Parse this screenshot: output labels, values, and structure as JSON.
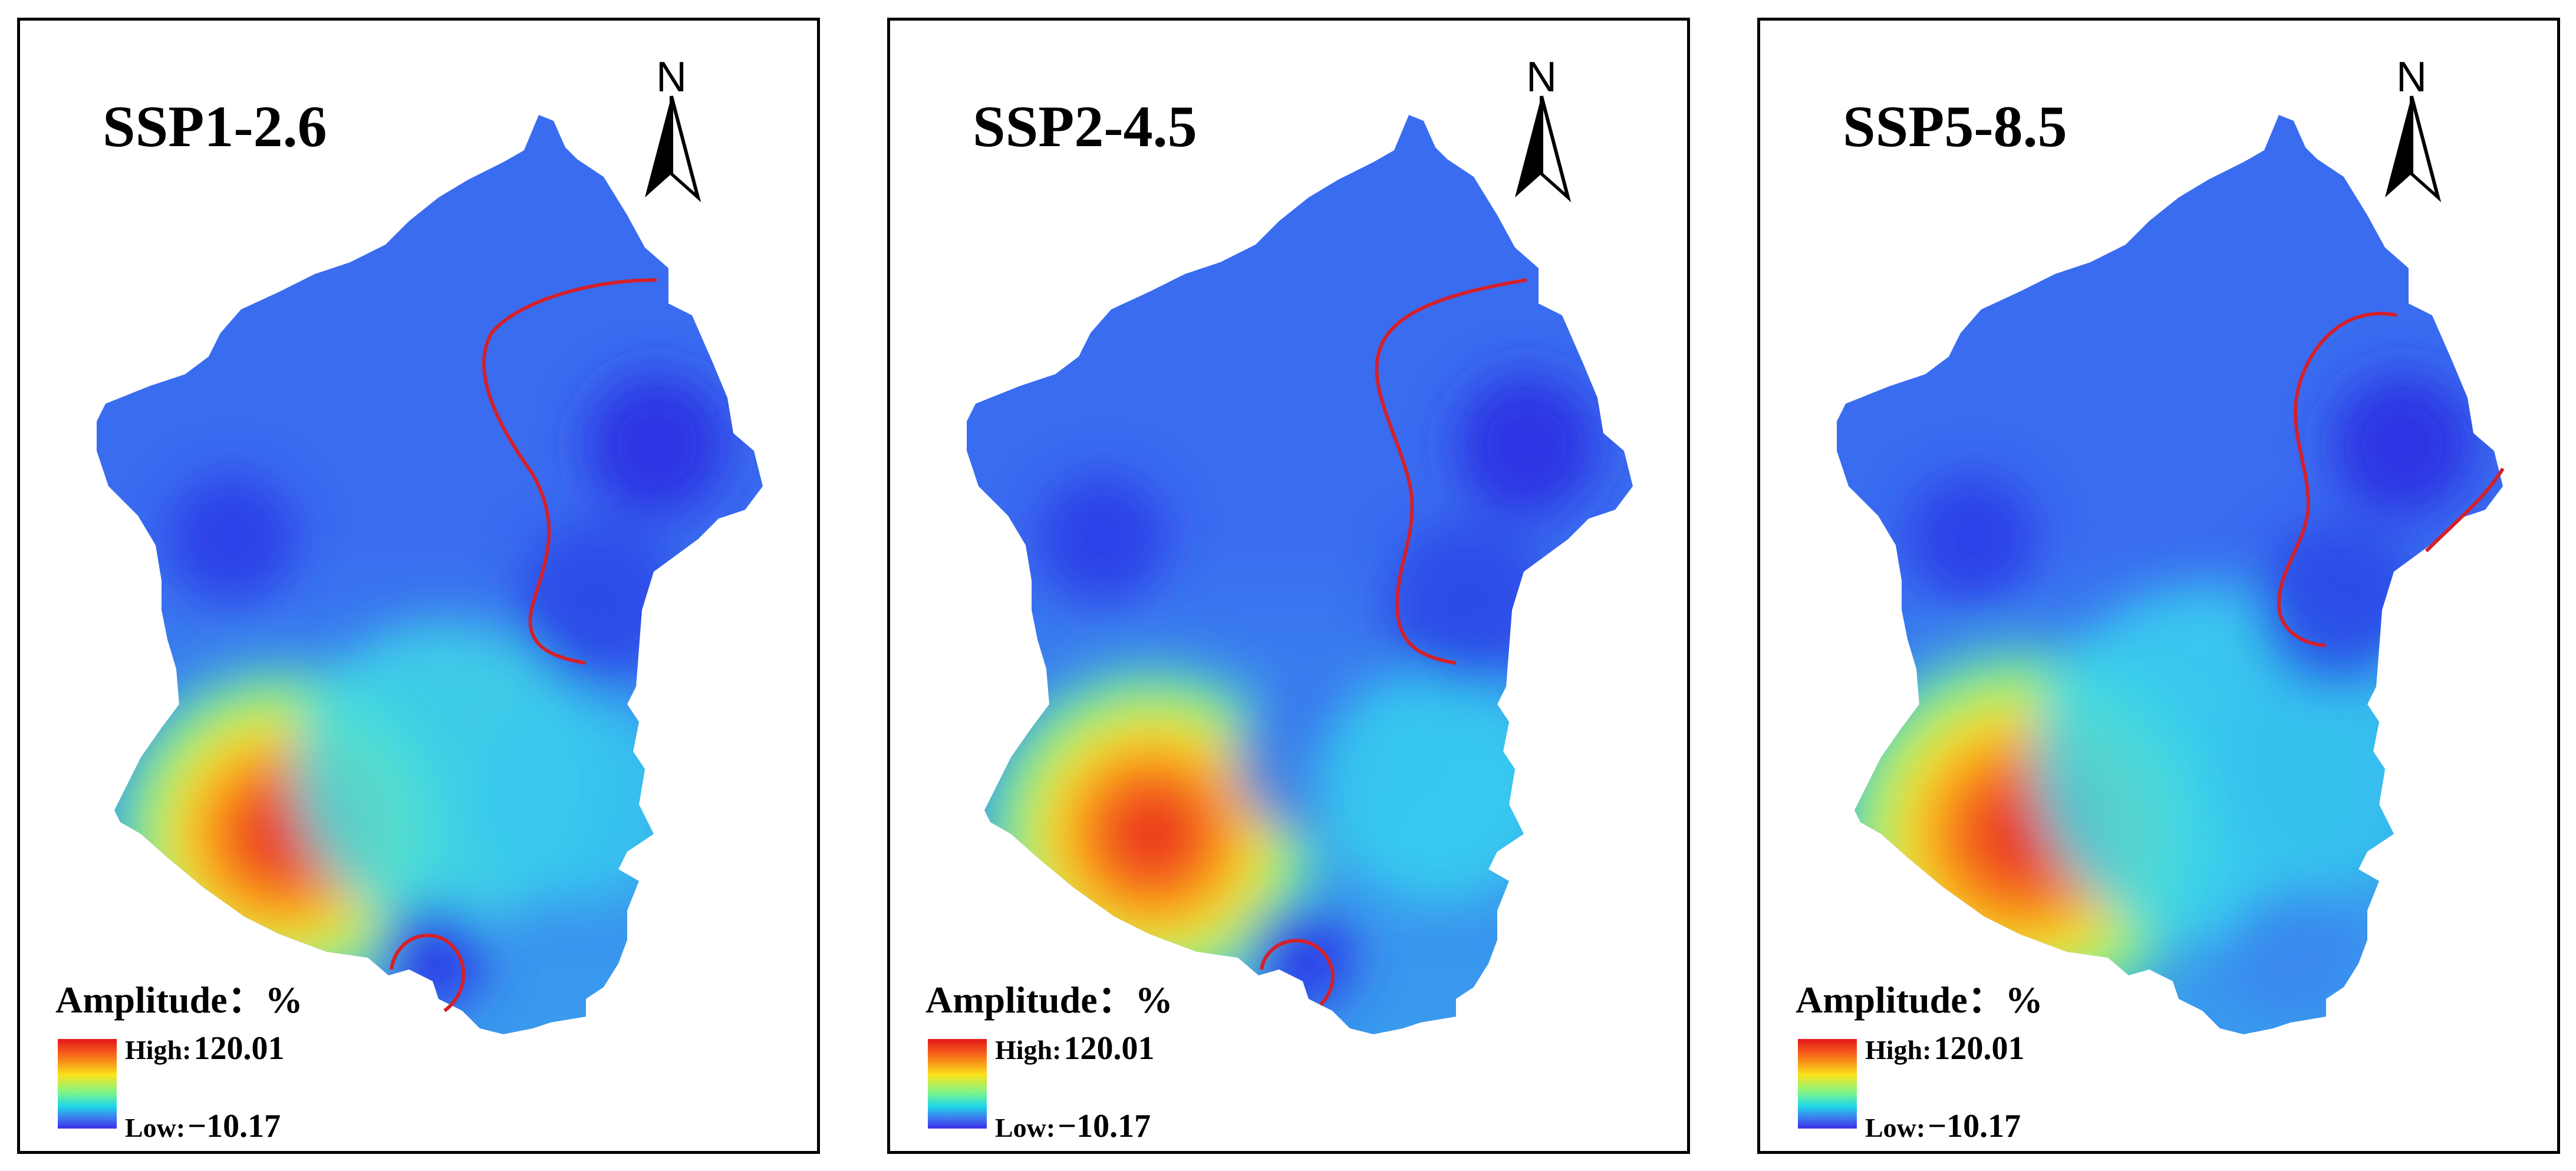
{
  "figure": {
    "panels": [
      {
        "scenario": "SSP1-2.6"
      },
      {
        "scenario": "SSP2-4.5"
      },
      {
        "scenario": "SSP5-8.5"
      }
    ],
    "north_arrow": "N",
    "legend": {
      "title": "Amplitude：%",
      "high_label": "High:",
      "high_value": "120.01",
      "low_label": "Low:",
      "low_value": "−10.17"
    },
    "colors": {
      "high": "#e2151a",
      "mid_high": "#fbe31a",
      "mid": "#20d7e8",
      "low": "#3a2ee8",
      "base": "#3a6cf0",
      "contour": "#d4202a"
    }
  }
}
